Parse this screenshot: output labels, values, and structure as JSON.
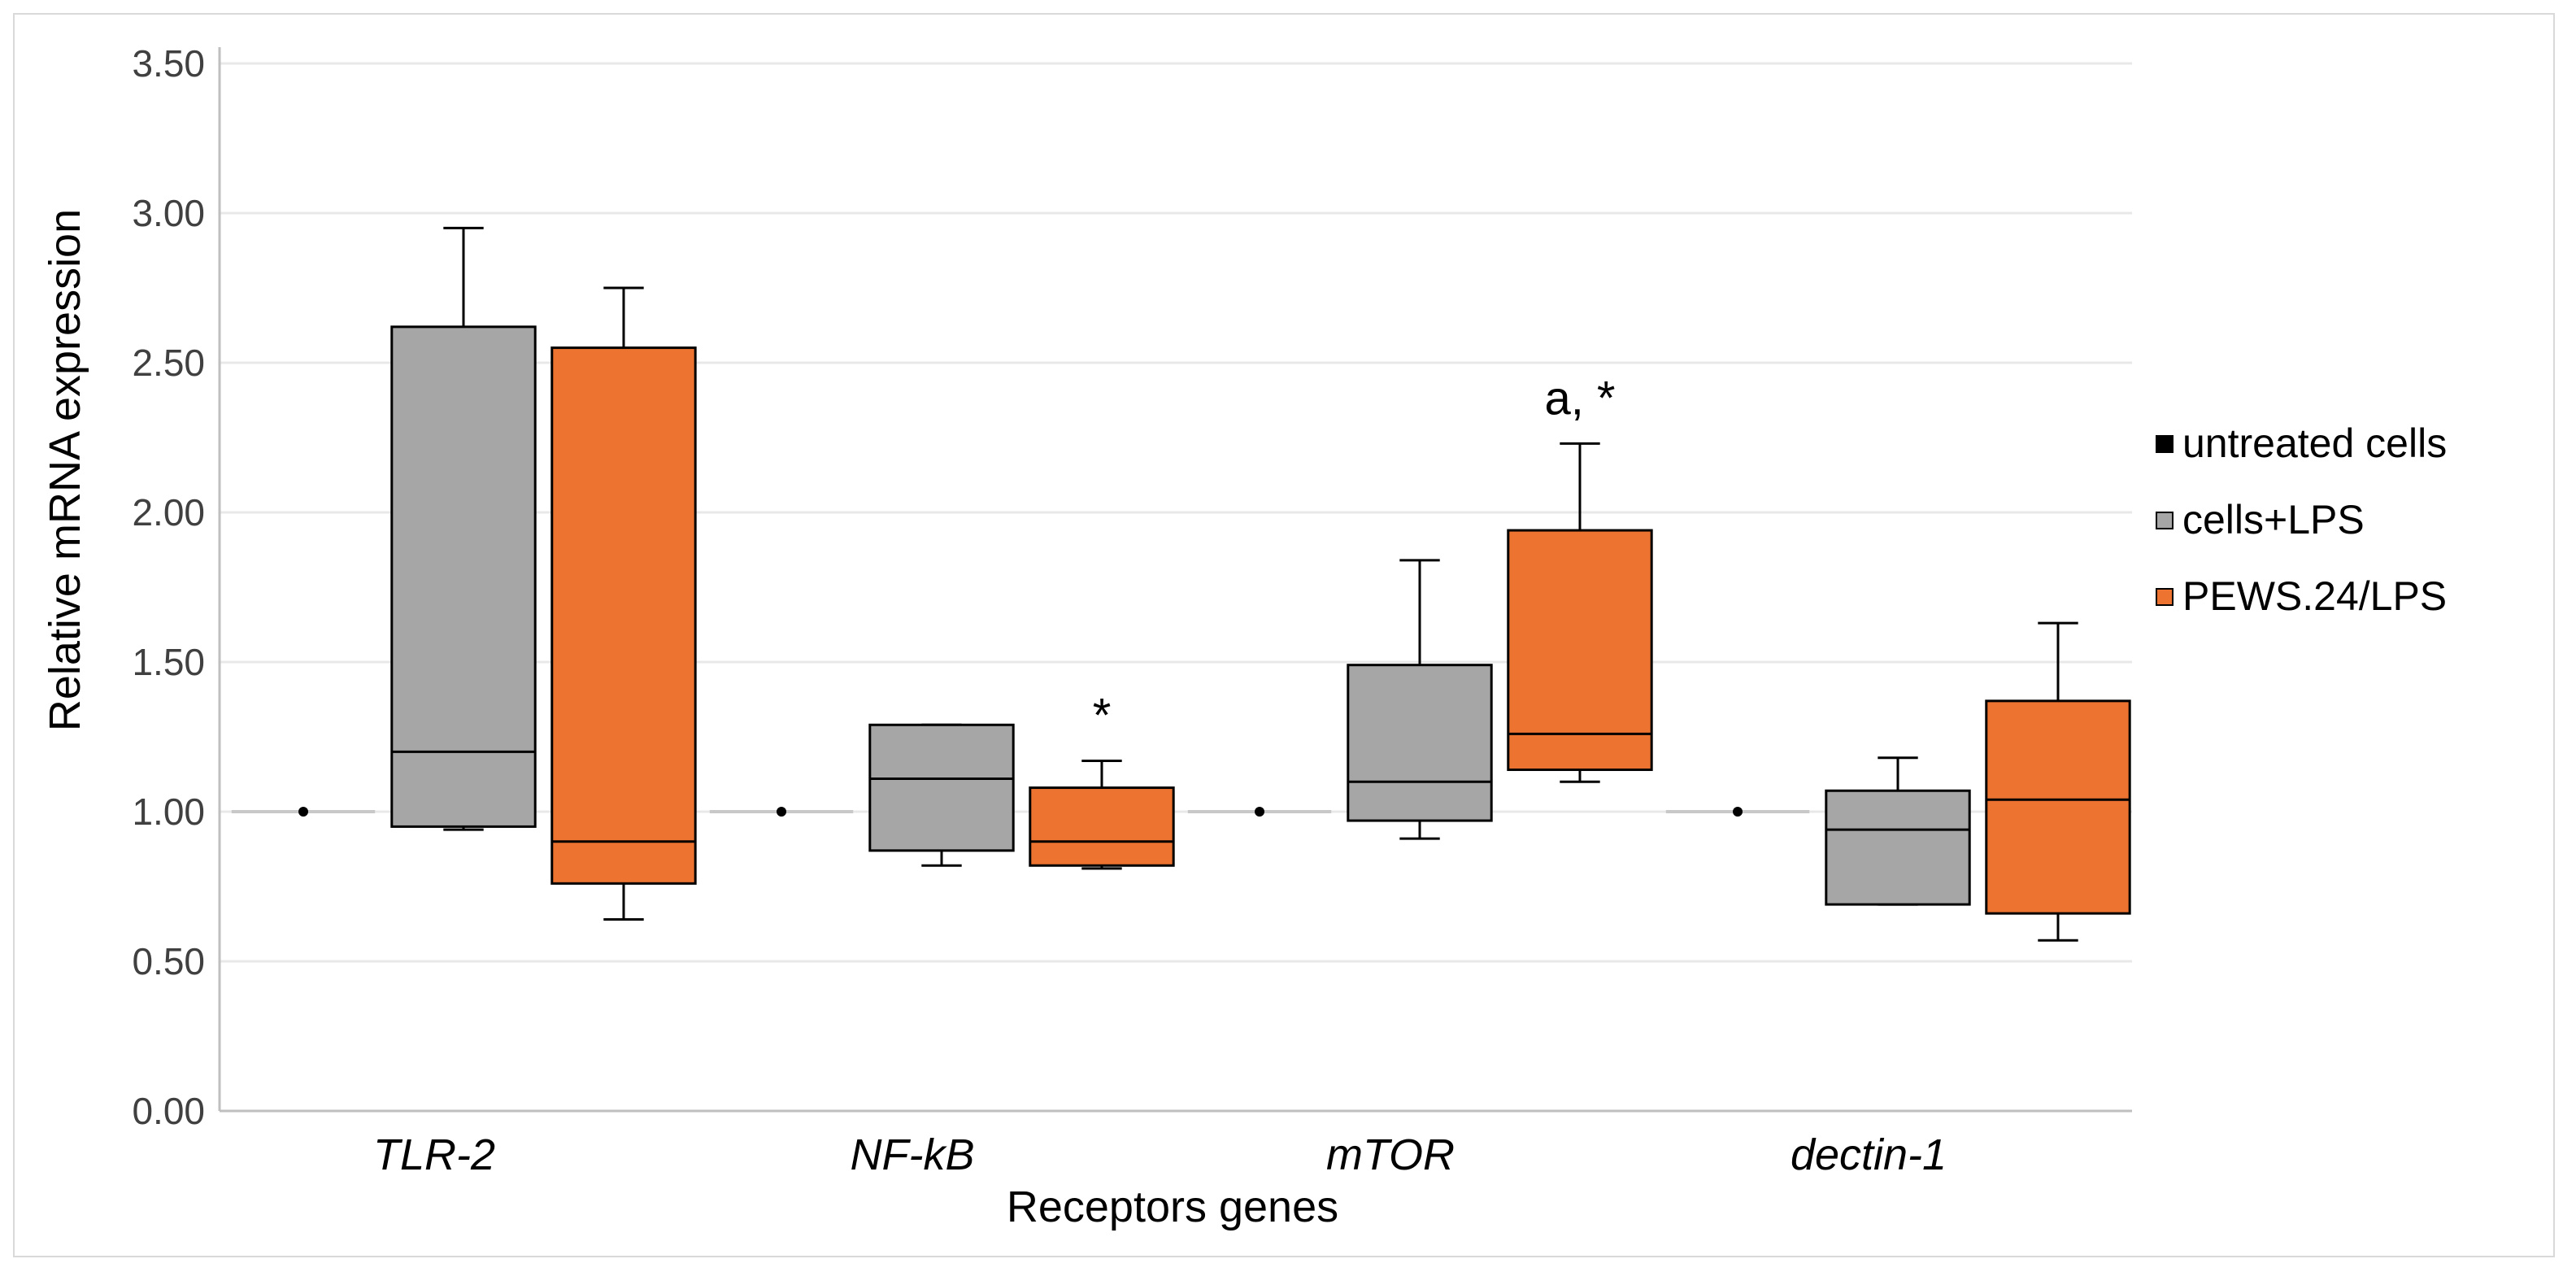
{
  "chart_data": {
    "type": "box",
    "title": "",
    "xlabel": "Receptors genes",
    "ylabel": "Relative mRNA expression",
    "ylim": [
      0,
      3.5
    ],
    "yticks": [
      "0.00",
      "0.50",
      "1.00",
      "1.50",
      "2.00",
      "2.50",
      "3.00",
      "3.50"
    ],
    "grid": true,
    "legend_position": "right",
    "categories": [
      "TLR-2",
      "NF-kB",
      "mTOR",
      "dectin-1"
    ],
    "series": [
      {
        "name": "untreated cells",
        "color": "#000000",
        "boxes": [
          {
            "min": 1.0,
            "q1": 1.0,
            "median": 1.0,
            "q3": 1.0,
            "max": 1.0
          },
          {
            "min": 1.0,
            "q1": 1.0,
            "median": 1.0,
            "q3": 1.0,
            "max": 1.0
          },
          {
            "min": 1.0,
            "q1": 1.0,
            "median": 1.0,
            "q3": 1.0,
            "max": 1.0
          },
          {
            "min": 1.0,
            "q1": 1.0,
            "median": 1.0,
            "q3": 1.0,
            "max": 1.0
          }
        ]
      },
      {
        "name": "cells+LPS",
        "color": "#a6a6a6",
        "boxes": [
          {
            "min": 0.94,
            "q1": 0.95,
            "median": 1.2,
            "q3": 2.62,
            "max": 2.95
          },
          {
            "min": 0.82,
            "q1": 0.87,
            "median": 1.11,
            "q3": 1.29,
            "max": 1.29
          },
          {
            "min": 0.91,
            "q1": 0.97,
            "median": 1.1,
            "q3": 1.49,
            "max": 1.84
          },
          {
            "min": 0.69,
            "q1": 0.69,
            "median": 0.94,
            "q3": 1.07,
            "max": 1.18
          }
        ]
      },
      {
        "name": "PEWS.24/LPS",
        "color": "#ed7330",
        "boxes": [
          {
            "min": 0.64,
            "q1": 0.76,
            "median": 0.9,
            "q3": 2.55,
            "max": 2.75
          },
          {
            "min": 0.81,
            "q1": 0.82,
            "median": 0.9,
            "q3": 1.08,
            "max": 1.17
          },
          {
            "min": 1.1,
            "q1": 1.14,
            "median": 1.26,
            "q3": 1.94,
            "max": 2.23
          },
          {
            "min": 0.57,
            "q1": 0.66,
            "median": 1.04,
            "q3": 1.37,
            "max": 1.63
          }
        ]
      }
    ],
    "annotations": [
      {
        "category": "NF-kB",
        "series": "PEWS.24/LPS",
        "text": "*"
      },
      {
        "category": "mTOR",
        "series": "PEWS.24/LPS",
        "text": "a, *"
      }
    ]
  }
}
